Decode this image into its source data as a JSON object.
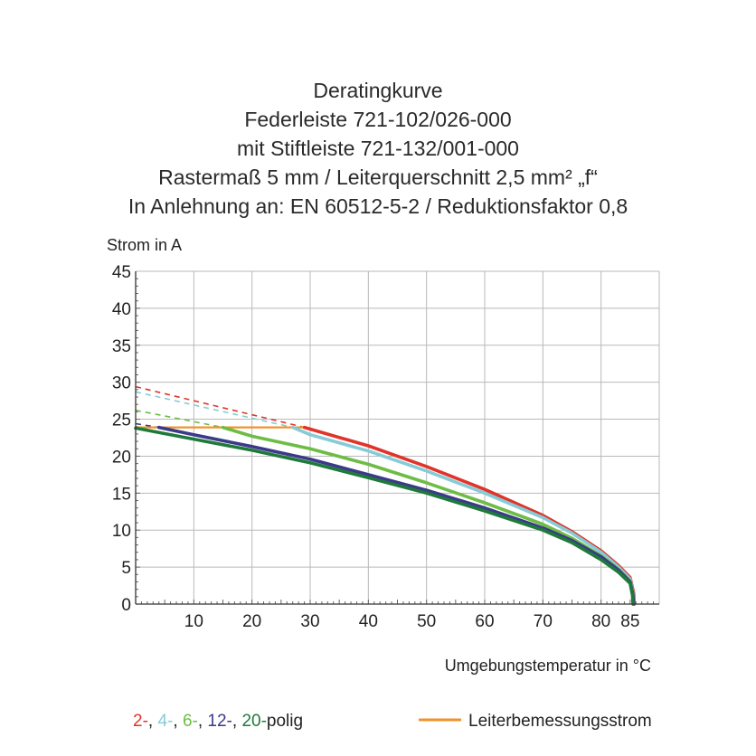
{
  "chart_data": {
    "type": "line",
    "title_lines": [
      "Deratingkurve",
      "Federleiste 721-102/026-000",
      "mit Stiftleiste 721-132/001-000",
      "Rastermaß 5 mm / Leiterquerschnitt 2,5 mm² „f“",
      "In Anlehnung an: EN 60512-5-2 / Reduktionsfaktor 0,8"
    ],
    "ylabel": "Strom in A",
    "xlabel": "Umgebungstemperatur in  °C",
    "xlim": [
      0,
      90
    ],
    "ylim": [
      0,
      45
    ],
    "x_ticks": [
      10,
      20,
      30,
      40,
      50,
      60,
      70,
      80,
      85
    ],
    "y_ticks": [
      0,
      5,
      10,
      15,
      20,
      25,
      30,
      35,
      40,
      45
    ],
    "grid": true,
    "series": [
      {
        "name": "2-",
        "color": "#e0342a",
        "dashed": [
          [
            0,
            29.4
          ],
          [
            29,
            23.9
          ]
        ],
        "values": [
          [
            29,
            23.9
          ],
          [
            40,
            21.4
          ],
          [
            50,
            18.6
          ],
          [
            60,
            15.5
          ],
          [
            70,
            12.0
          ],
          [
            75,
            9.8
          ],
          [
            80,
            7.2
          ],
          [
            83,
            5.2
          ],
          [
            85,
            3.6
          ],
          [
            85.6,
            1.5
          ],
          [
            85.7,
            0
          ]
        ]
      },
      {
        "name": "4-",
        "color": "#86cbd6",
        "dashed": [
          [
            0,
            28.7
          ],
          [
            27,
            23.9
          ]
        ],
        "values": [
          [
            27,
            23.9
          ],
          [
            30,
            22.9
          ],
          [
            40,
            20.7
          ],
          [
            50,
            18.0
          ],
          [
            60,
            15.0
          ],
          [
            70,
            11.7
          ],
          [
            75,
            9.6
          ],
          [
            80,
            7.0
          ],
          [
            83,
            5.0
          ],
          [
            85,
            3.4
          ],
          [
            85.5,
            1.5
          ],
          [
            85.6,
            0
          ]
        ]
      },
      {
        "name": "6-",
        "color": "#6dbd45",
        "dashed": [
          [
            0,
            26.2
          ],
          [
            15,
            23.9
          ]
        ],
        "values": [
          [
            15,
            23.9
          ],
          [
            20,
            22.7
          ],
          [
            30,
            21.0
          ],
          [
            40,
            18.9
          ],
          [
            50,
            16.4
          ],
          [
            60,
            13.7
          ],
          [
            70,
            10.8
          ],
          [
            75,
            8.9
          ],
          [
            80,
            6.5
          ],
          [
            83,
            4.7
          ],
          [
            85,
            3.1
          ],
          [
            85.5,
            1.3
          ],
          [
            85.6,
            0
          ]
        ]
      },
      {
        "name": "12-",
        "color": "#3b3a8a",
        "dashed": [
          [
            0,
            24.4
          ],
          [
            4,
            23.9
          ]
        ],
        "values": [
          [
            4,
            23.9
          ],
          [
            10,
            22.9
          ],
          [
            20,
            21.3
          ],
          [
            30,
            19.6
          ],
          [
            40,
            17.5
          ],
          [
            50,
            15.4
          ],
          [
            60,
            13.0
          ],
          [
            70,
            10.3
          ],
          [
            75,
            8.6
          ],
          [
            80,
            6.4
          ],
          [
            83,
            4.6
          ],
          [
            85,
            3.0
          ],
          [
            85.5,
            1.2
          ],
          [
            85.6,
            0
          ]
        ]
      },
      {
        "name": "20-",
        "color": "#1f7a3a",
        "dashed": [],
        "values": [
          [
            0,
            23.8
          ],
          [
            10,
            22.3
          ],
          [
            20,
            20.8
          ],
          [
            30,
            19.1
          ],
          [
            40,
            17.1
          ],
          [
            50,
            15.0
          ],
          [
            60,
            12.6
          ],
          [
            70,
            10.0
          ],
          [
            75,
            8.3
          ],
          [
            80,
            6.0
          ],
          [
            83,
            4.3
          ],
          [
            85,
            2.8
          ],
          [
            85.4,
            1.2
          ],
          [
            85.5,
            0
          ]
        ]
      }
    ],
    "rated_current": {
      "name": "Leiterbemessungsstrom",
      "color": "#f0932b",
      "values": [
        [
          0,
          23.9
        ],
        [
          29,
          23.9
        ]
      ]
    },
    "legend": {
      "placement": "bottom",
      "series_suffix": "polig",
      "separator": ", "
    }
  }
}
